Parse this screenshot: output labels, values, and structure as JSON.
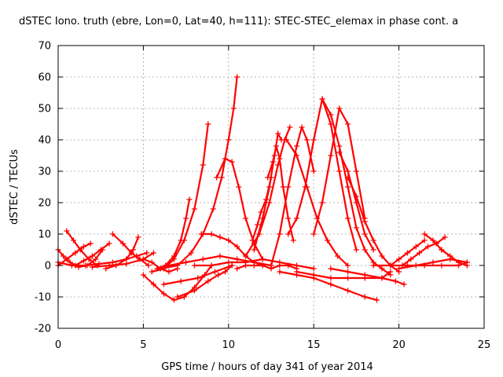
{
  "chart_data": {
    "type": "line",
    "title": "dSTEC Iono. truth (ebre, Lon=0, Lat=40, h=111): STEC-STEC_elemax in phase cont. a",
    "xlabel": "GPS time / hours of day 341 of year 2014",
    "ylabel": "dSTEC  / TECUs",
    "xlim": [
      0,
      25
    ],
    "ylim": [
      -20,
      70
    ],
    "xticks": [
      0,
      5,
      10,
      15,
      20,
      25
    ],
    "yticks": [
      -20,
      -10,
      0,
      10,
      20,
      30,
      40,
      50,
      60,
      70
    ],
    "grid": true,
    "marker": "+",
    "series_color": "#ff0000",
    "series": [
      {
        "x": [
          0.0,
          0.3,
          0.7,
          1.2,
          1.7,
          2.2,
          2.6
        ],
        "y": [
          5,
          3,
          1,
          -0.5,
          0,
          2,
          5
        ]
      },
      {
        "x": [
          0.5,
          0.9,
          1.3,
          1.8,
          2.3
        ],
        "y": [
          11,
          8,
          5,
          2,
          0
        ]
      },
      {
        "x": [
          0.0,
          0.5,
          1.0,
          1.5,
          1.9
        ],
        "y": [
          0,
          2,
          4,
          6,
          7
        ]
      },
      {
        "x": [
          1.0,
          1.5,
          2.0,
          2.5,
          3.0
        ],
        "y": [
          0,
          1.5,
          3,
          5,
          7
        ]
      },
      {
        "x": [
          0.0,
          0.8,
          1.6,
          2.4,
          3.2,
          4.0,
          4.6,
          5.2
        ],
        "y": [
          1,
          0,
          0,
          0.5,
          1,
          2,
          3,
          4
        ]
      },
      {
        "x": [
          3.2,
          3.8,
          4.3,
          4.8,
          5.3
        ],
        "y": [
          10,
          7,
          4,
          2,
          0
        ]
      },
      {
        "x": [
          2.8,
          3.4,
          4.0,
          4.4,
          4.7
        ],
        "y": [
          -1,
          0,
          2,
          5,
          9
        ]
      },
      {
        "x": [
          2.0,
          3.0,
          4.0,
          5.0,
          5.6
        ],
        "y": [
          -0.5,
          0,
          0.5,
          2,
          4
        ]
      },
      {
        "x": [
          5.8,
          6.3,
          6.8,
          7.2,
          7.5,
          7.7
        ],
        "y": [
          -1,
          0,
          3,
          8,
          15,
          21
        ]
      },
      {
        "x": [
          5.5,
          6.2,
          6.8,
          7.4,
          8.0,
          8.5,
          8.8
        ],
        "y": [
          -2,
          -1,
          2,
          8,
          18,
          32,
          45
        ]
      },
      {
        "x": [
          6.0,
          7.0,
          7.8,
          8.5,
          9.1,
          9.6,
          10.0,
          10.3,
          10.5
        ],
        "y": [
          -1,
          0,
          4,
          10,
          18,
          28,
          40,
          50,
          60
        ]
      },
      {
        "x": [
          5.0,
          5.5,
          6.0,
          6.5,
          7.0
        ],
        "y": [
          2,
          1,
          -1,
          -2,
          -1
        ]
      },
      {
        "x": [
          5.0,
          5.6,
          6.2,
          6.8,
          7.4,
          8.0,
          8.6,
          9.0
        ],
        "y": [
          -3,
          -6,
          -9,
          -11,
          -10,
          -7,
          -3,
          0
        ]
      },
      {
        "x": [
          7.0,
          8.0,
          8.8,
          9.4,
          9.8,
          10.2
        ],
        "y": [
          -10,
          -8,
          -5,
          -3,
          -2,
          0
        ]
      },
      {
        "x": [
          6.2,
          7.2,
          8.2,
          9.2,
          10.2
        ],
        "y": [
          -6,
          -5,
          -4,
          -2,
          0
        ]
      },
      {
        "x": [
          6.5,
          7.5,
          8.5,
          9.5,
          10.5,
          11.5,
          12.5
        ],
        "y": [
          0,
          1,
          2,
          3,
          2,
          1,
          0
        ]
      },
      {
        "x": [
          8.4,
          9.0,
          9.5,
          10.0,
          10.5,
          11.0,
          11.5,
          12.0
        ],
        "y": [
          10,
          10,
          9,
          8,
          6,
          3,
          1,
          0
        ]
      },
      {
        "x": [
          9.3,
          9.8,
          10.2,
          10.6,
          11.0,
          11.5,
          12.0
        ],
        "y": [
          28,
          34,
          33,
          25,
          15,
          7,
          2
        ]
      },
      {
        "x": [
          8.0,
          9.0,
          10.0,
          11.0,
          12.0,
          13.0,
          14.0,
          15.0
        ],
        "y": [
          0,
          0,
          1,
          1,
          2,
          1,
          0,
          -1
        ]
      },
      {
        "x": [
          10.5,
          11.0,
          11.5,
          12.0,
          12.5,
          13.0,
          13.5,
          14.0
        ],
        "y": [
          -1,
          0,
          0,
          0,
          -1,
          0,
          0,
          -1
        ]
      },
      {
        "x": [
          11.4,
          11.7,
          11.9,
          12.2,
          12.5
        ],
        "y": [
          8,
          13,
          17,
          21,
          28
        ]
      },
      {
        "x": [
          11.5,
          12.0,
          12.4,
          12.7,
          12.9,
          13.1
        ],
        "y": [
          5,
          15,
          25,
          35,
          42,
          40
        ]
      },
      {
        "x": [
          11.0,
          11.8,
          12.4,
          12.9,
          13.3,
          13.6
        ],
        "y": [
          3,
          10,
          20,
          32,
          40,
          44
        ]
      },
      {
        "x": [
          12.3,
          12.6,
          12.8,
          13.0,
          13.2,
          13.5,
          13.8
        ],
        "y": [
          28,
          33,
          38,
          34,
          25,
          15,
          8
        ]
      },
      {
        "x": [
          12.5,
          13.0,
          13.5,
          14.0,
          14.3,
          14.6,
          15.0
        ],
        "y": [
          0,
          10,
          25,
          38,
          44,
          40,
          30
        ]
      },
      {
        "x": [
          13.4,
          14.0,
          14.6,
          15.2,
          15.8,
          16.4,
          17.0
        ],
        "y": [
          40,
          35,
          25,
          15,
          8,
          3,
          0
        ]
      },
      {
        "x": [
          13.5,
          14.0,
          14.5,
          15.0,
          15.5,
          16.0,
          16.5,
          17.0,
          17.5
        ],
        "y": [
          10,
          15,
          25,
          40,
          53,
          45,
          30,
          15,
          5
        ]
      },
      {
        "x": [
          15.0,
          15.5,
          16.0,
          16.5,
          17.0,
          17.5,
          18.0
        ],
        "y": [
          10,
          20,
          35,
          50,
          45,
          30,
          15
        ]
      },
      {
        "x": [
          15.5,
          16.0,
          16.5,
          17.0,
          17.5,
          18.0,
          18.5,
          19.0,
          19.5
        ],
        "y": [
          53,
          48,
          38,
          25,
          12,
          5,
          1,
          -1,
          -3
        ]
      },
      {
        "x": [
          16.5,
          17.0,
          17.5,
          18.0,
          18.5
        ],
        "y": [
          36,
          30,
          20,
          10,
          5
        ]
      },
      {
        "x": [
          17.0,
          17.5,
          18.0,
          18.5,
          19.0,
          19.5,
          20.0
        ],
        "y": [
          28,
          22,
          14,
          8,
          3,
          0,
          -2
        ]
      },
      {
        "x": [
          13.0,
          14.0,
          15.0,
          16.0,
          17.0,
          18.0,
          18.7
        ],
        "y": [
          -2,
          -3,
          -4,
          -6,
          -8,
          -10,
          -11
        ]
      },
      {
        "x": [
          14.0,
          15.0,
          16.0,
          17.0,
          18.0,
          19.0,
          19.5
        ],
        "y": [
          -2,
          -3,
          -4,
          -4,
          -4,
          -4,
          -2
        ]
      },
      {
        "x": [
          16.0,
          17.0,
          18.0,
          19.0,
          19.8,
          20.3
        ],
        "y": [
          -1,
          -2,
          -3,
          -4,
          -5,
          -6
        ]
      },
      {
        "x": [
          18.5,
          19.5,
          20.5,
          21.5,
          22.5,
          23.5,
          24.0
        ],
        "y": [
          0,
          0,
          0,
          0,
          0,
          0,
          1
        ]
      },
      {
        "x": [
          19.5,
          20.0,
          20.5,
          21.0,
          21.5
        ],
        "y": [
          0,
          2,
          4,
          6,
          8
        ]
      },
      {
        "x": [
          20.2,
          20.7,
          21.2,
          21.7,
          22.2,
          22.7
        ],
        "y": [
          0,
          2,
          4,
          6,
          7,
          9
        ]
      },
      {
        "x": [
          21.5,
          22.0,
          22.5,
          23.0,
          23.5
        ],
        "y": [
          10,
          8,
          5,
          3,
          1
        ]
      },
      {
        "x": [
          22.5,
          23.0,
          23.5,
          24.0
        ],
        "y": [
          5,
          3,
          1,
          0
        ]
      },
      {
        "x": [
          20.0,
          21.0,
          22.0,
          23.0,
          24.0
        ],
        "y": [
          -1,
          0,
          1,
          2,
          1
        ]
      }
    ]
  }
}
